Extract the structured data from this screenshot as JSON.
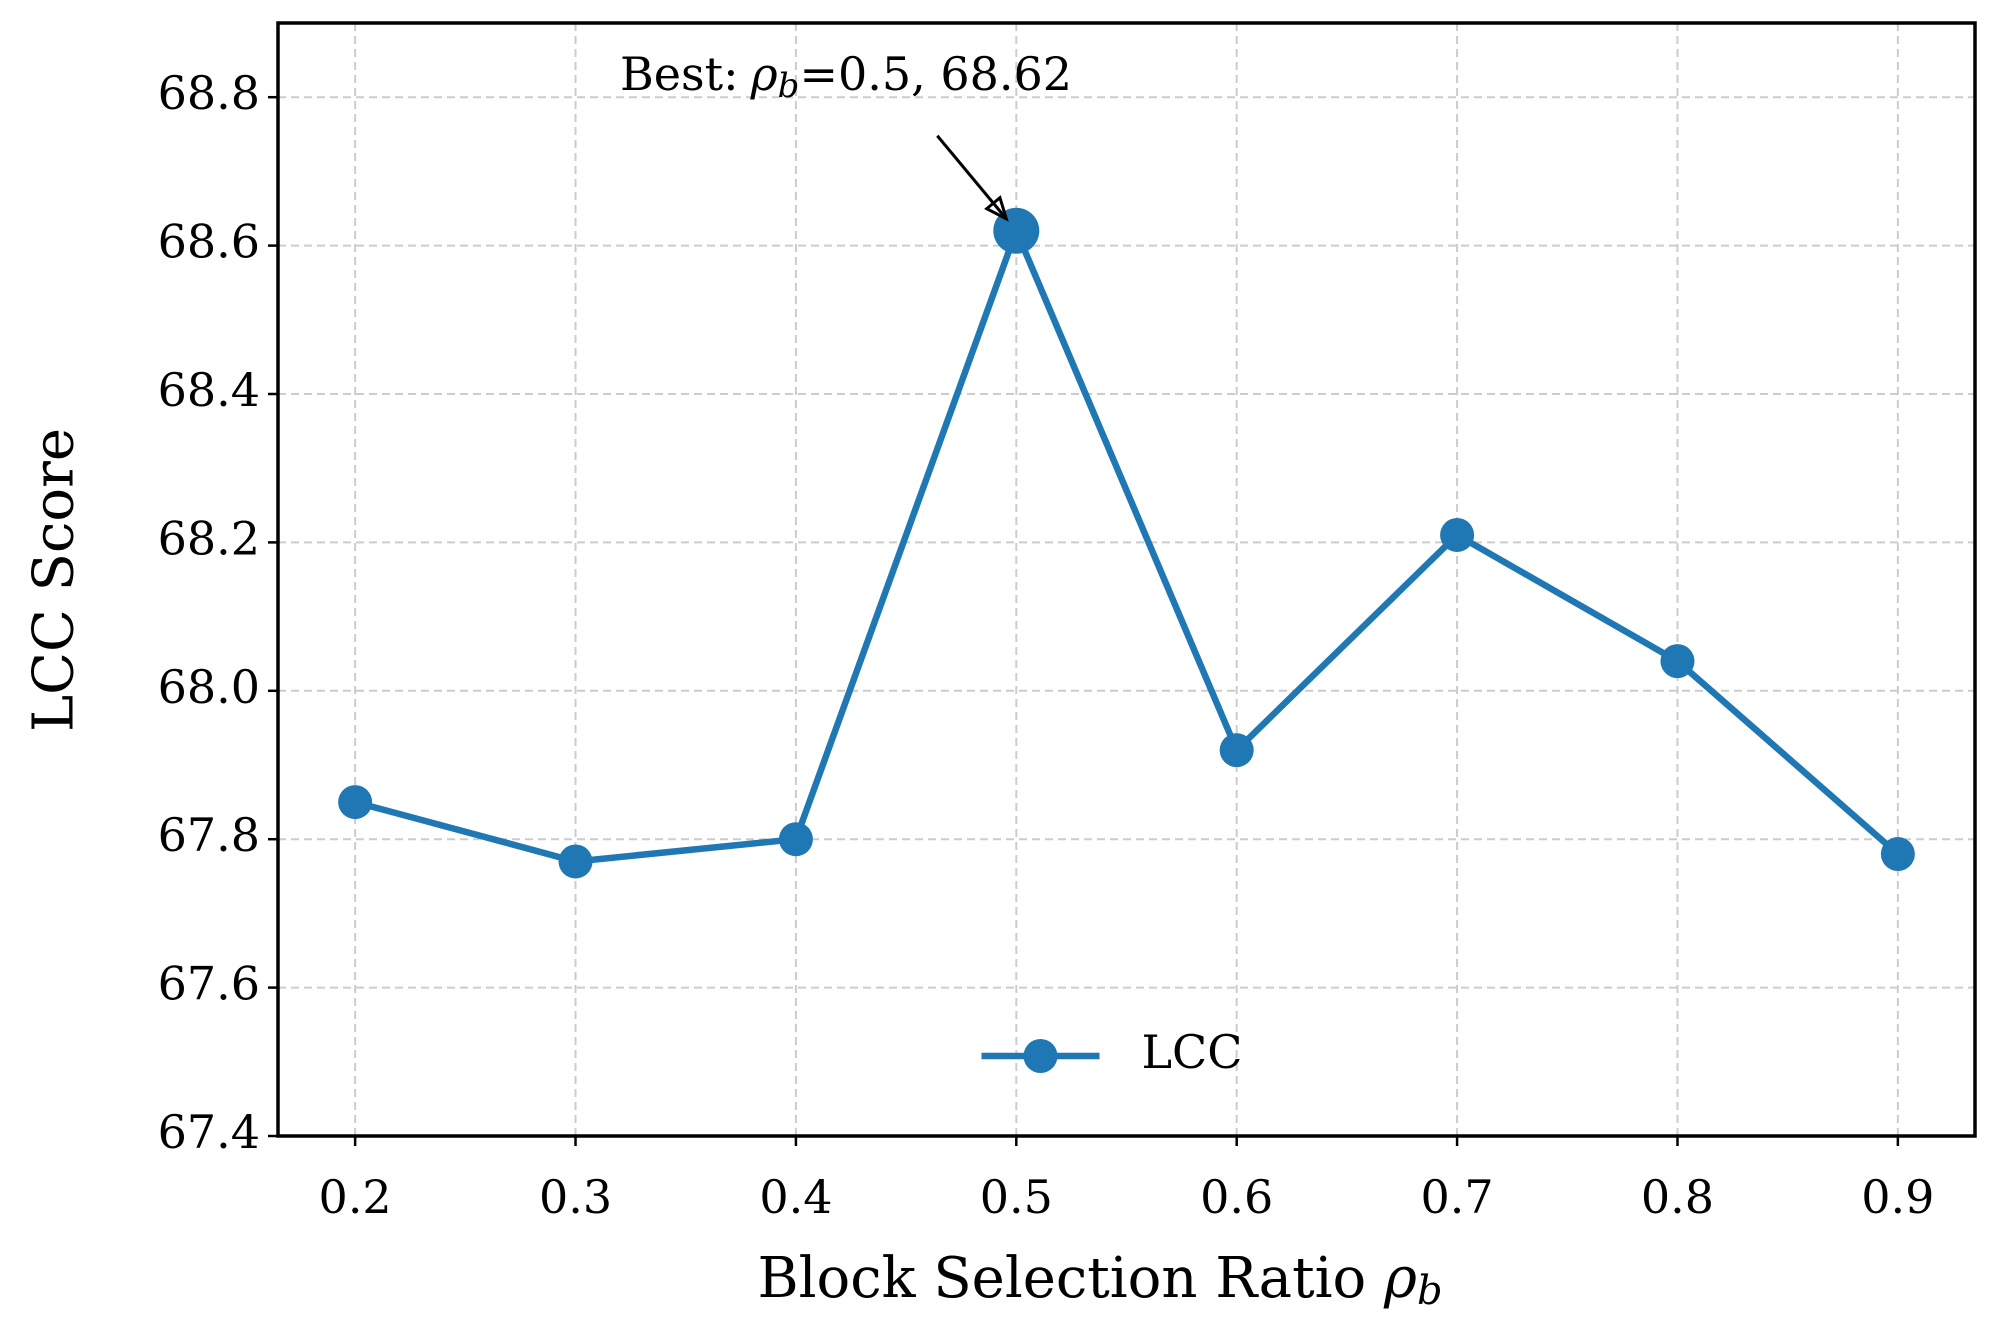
{
  "chart_data": {
    "type": "line",
    "x": [
      0.2,
      0.3,
      0.4,
      0.5,
      0.6,
      0.7,
      0.8,
      0.9
    ],
    "series": [
      {
        "name": "LCC",
        "color": "#1f77b4",
        "values": [
          67.85,
          67.77,
          67.8,
          68.62,
          67.92,
          68.21,
          68.04,
          67.78
        ]
      }
    ],
    "xlim": [
      0.165,
      0.935
    ],
    "ylim": [
      67.4,
      68.9
    ],
    "xticks": [
      0.2,
      0.3,
      0.4,
      0.5,
      0.6,
      0.7,
      0.8,
      0.9
    ],
    "yticks": [
      67.4,
      67.6,
      67.8,
      {
        "value": 68,
        "label": "68.0"
      },
      68.2,
      68.4,
      68.6,
      68.8
    ],
    "xlabel": {
      "text": "Block Selection Ratio",
      "symbol": "ρ",
      "subscript": "b"
    },
    "ylabel": "LCC Score",
    "annotation": {
      "prefix": "Best:",
      "symbol": "ρ",
      "subscript": "b",
      "text": "=0.5, 68.62",
      "x": 0.5,
      "y": 68.62
    },
    "grid": true,
    "legend": "lower center"
  }
}
